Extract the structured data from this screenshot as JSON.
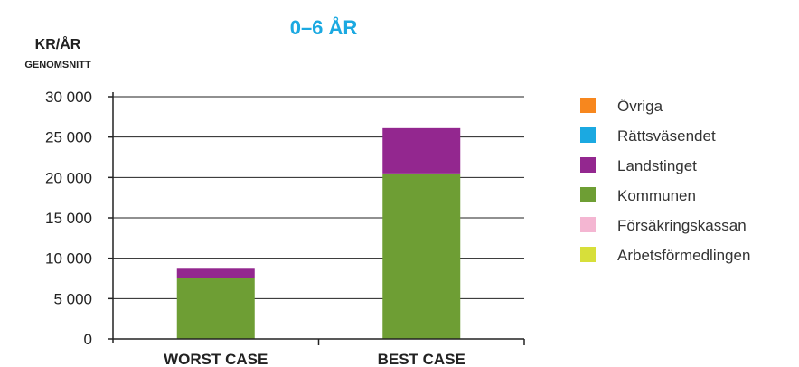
{
  "chart_data": {
    "type": "bar",
    "stacked": true,
    "title": "0–6 ÅR",
    "ylabel": "KR/ÅR",
    "ylabel_sub": "GENOMSNITT",
    "xlabel": "",
    "categories": [
      "WORST CASE",
      "BEST CASE"
    ],
    "ylim": [
      0,
      30000
    ],
    "yticks": [
      0,
      5000,
      10000,
      15000,
      20000,
      25000,
      30000
    ],
    "ytick_labels": [
      "0",
      "5 000",
      "10 000",
      "15 000",
      "20 000",
      "25 000",
      "30 000"
    ],
    "grid": true,
    "legend_position": "right",
    "series": [
      {
        "name": "Arbetsförmedlingen",
        "color": "#d7df3a",
        "values": [
          0,
          0
        ]
      },
      {
        "name": "Försäkringskassan",
        "color": "#f4b6d2",
        "values": [
          0,
          0
        ]
      },
      {
        "name": "Kommunen",
        "color": "#6e9e34",
        "values": [
          7600,
          20500
        ]
      },
      {
        "name": "Landstinget",
        "color": "#93278f",
        "values": [
          1100,
          5600
        ]
      },
      {
        "name": "Rättsväsendet",
        "color": "#1ba9e1",
        "values": [
          0,
          0
        ]
      },
      {
        "name": "Övriga",
        "color": "#f7871e",
        "values": [
          0,
          0
        ]
      }
    ],
    "legend_order": [
      "Övriga",
      "Rättsväsendet",
      "Landstinget",
      "Kommunen",
      "Försäkringskassan",
      "Arbetsförmedlingen"
    ]
  },
  "colors": {
    "title": "#1ba9e1",
    "text": "#222222",
    "grid": "#222222"
  }
}
